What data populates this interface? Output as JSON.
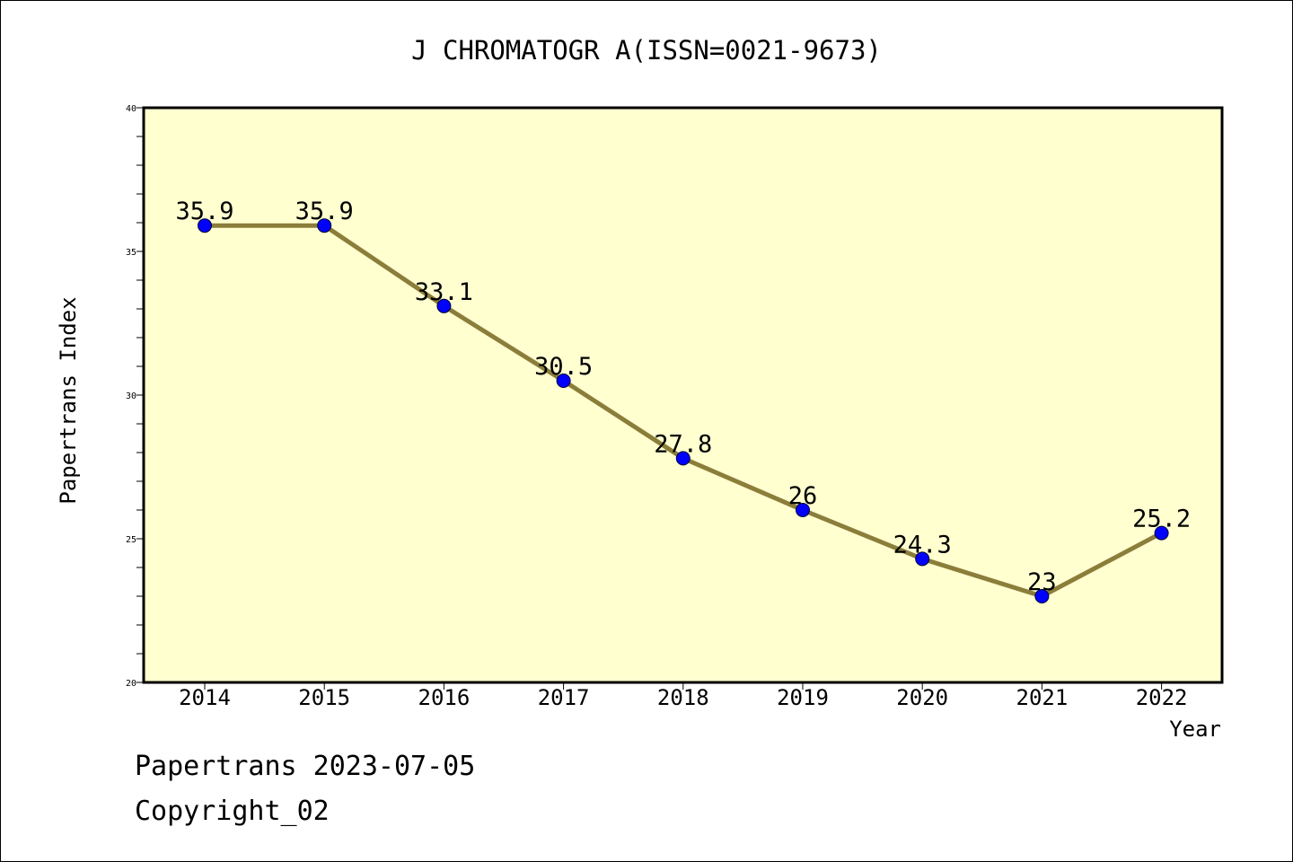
{
  "chart_data": {
    "type": "line",
    "title": "J CHROMATOGR A(ISSN=0021-9673)",
    "xlabel": "Year",
    "ylabel": "Papertrans Index",
    "categories": [
      "2014",
      "2015",
      "2016",
      "2017",
      "2018",
      "2019",
      "2020",
      "2021",
      "2022"
    ],
    "series": [
      {
        "values": [
          35.9,
          35.9,
          33.1,
          30.5,
          27.8,
          26,
          24.3,
          23,
          25.2
        ],
        "labels": [
          "35.9",
          "35.9",
          "33.1",
          "30.5",
          "27.8",
          "26",
          "24.3",
          "23",
          "25.2"
        ]
      }
    ],
    "ylim": [
      20,
      40
    ],
    "yticks": [
      20,
      25,
      30,
      35,
      40
    ],
    "grid": false,
    "legend": "none",
    "colors": {
      "plot_background": "#ffffd0",
      "line": "#8b7d3a",
      "marker": "#0000ff",
      "axes": "#000000"
    }
  },
  "footer": {
    "date_line": "Papertrans 2023-07-05",
    "copyright": "Copyright_02"
  }
}
